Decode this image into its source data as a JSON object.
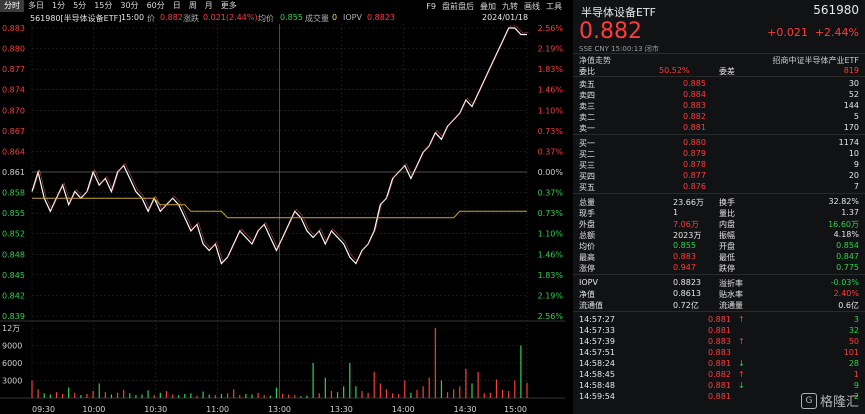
{
  "toolbar": {
    "tabs": [
      "分时",
      "多日",
      "1分",
      "5分",
      "15分",
      "30分",
      "60分",
      "日",
      "周",
      "月",
      "更多"
    ],
    "right_tabs": [
      "F9",
      "盘前盘后",
      "叠加",
      "九转",
      "画线",
      "工具"
    ]
  },
  "info": {
    "code_name": "561980[半导体设备ETF]",
    "time": "15:00",
    "price_label": "价",
    "price": "0.882",
    "change_label": "涨跌",
    "change": "0.021(2.44%)",
    "avg_label": "均价",
    "avg": "0.855",
    "volume_label": "成交量",
    "volume": "0",
    "iopv_label": "IOPV",
    "iopv": "0.8823",
    "date": "2024/01/18"
  },
  "chart_data": {
    "type": "line",
    "y_ticks_left": [
      "0.883",
      "0.880",
      "0.877",
      "0.874",
      "0.870",
      "0.867",
      "0.864",
      "0.861",
      "0.858",
      "0.855",
      "0.852",
      "0.848",
      "0.845",
      "0.842",
      "0.839"
    ],
    "y_ticks_right": [
      "2.56%",
      "2.19%",
      "1.83%",
      "1.46%",
      "1.10%",
      "0.73%",
      "0.37%",
      "0.00%",
      "0.37%",
      "0.73%",
      "1.10%",
      "1.46%",
      "1.83%",
      "2.19%",
      "2.56%"
    ],
    "volume_ticks": [
      "12万",
      "9000",
      "6000",
      "3000"
    ],
    "x_ticks": [
      "09:30",
      "10:00",
      "10:30",
      "11:00",
      "13:00",
      "13:30",
      "14:00",
      "14:30",
      "15:00"
    ],
    "ylim": [
      0.839,
      0.883
    ],
    "prev_close": 0.861,
    "series": [
      {
        "values": [
          0.858,
          0.861,
          0.857,
          0.855,
          0.857,
          0.859,
          0.856,
          0.858,
          0.857,
          0.858,
          0.861,
          0.859,
          0.86,
          0.858,
          0.861,
          0.862,
          0.86,
          0.858,
          0.857,
          0.855,
          0.857,
          0.855,
          0.856,
          0.857,
          0.856,
          0.854,
          0.852,
          0.853,
          0.85,
          0.849,
          0.85,
          0.847,
          0.848,
          0.85,
          0.852,
          0.851,
          0.85,
          0.852,
          0.853,
          0.851,
          0.849,
          0.851,
          0.853,
          0.855,
          0.854,
          0.852,
          0.851,
          0.852,
          0.85,
          0.852,
          0.851,
          0.85,
          0.848,
          0.847,
          0.849,
          0.85,
          0.852,
          0.856,
          0.857,
          0.86,
          0.861,
          0.862,
          0.86,
          0.862,
          0.864,
          0.865,
          0.867,
          0.866,
          0.868,
          0.869,
          0.87,
          0.872,
          0.871,
          0.873,
          0.875,
          0.877,
          0.879,
          0.881,
          0.883,
          0.883,
          0.882,
          0.882
        ]
      },
      {
        "values": [
          0.857,
          0.857,
          0.857,
          0.857,
          0.857,
          0.857,
          0.857,
          0.857,
          0.857,
          0.857,
          0.857,
          0.857,
          0.857,
          0.857,
          0.857,
          0.857,
          0.857,
          0.857,
          0.857,
          0.857,
          0.857,
          0.856,
          0.856,
          0.856,
          0.856,
          0.856,
          0.855,
          0.855,
          0.855,
          0.855,
          0.855,
          0.855,
          0.854,
          0.854,
          0.854,
          0.854,
          0.854,
          0.854,
          0.854,
          0.854,
          0.854,
          0.854,
          0.854,
          0.854,
          0.854,
          0.854,
          0.854,
          0.854,
          0.854,
          0.854,
          0.854,
          0.854,
          0.854,
          0.854,
          0.854,
          0.854,
          0.854,
          0.854,
          0.854,
          0.854,
          0.854,
          0.854,
          0.854,
          0.854,
          0.854,
          0.854,
          0.854,
          0.854,
          0.854,
          0.854,
          0.855,
          0.855,
          0.855,
          0.855,
          0.855,
          0.855,
          0.855,
          0.855,
          0.855,
          0.855,
          0.855,
          0.855
        ]
      }
    ],
    "volume_values": [
      3000,
      1500,
      800,
      600,
      1000,
      700,
      1800,
      900,
      500,
      700,
      1200,
      2500,
      1000,
      600,
      900,
      1400,
      800,
      500,
      600,
      1300,
      500,
      900,
      1200,
      600,
      500,
      700,
      800,
      400,
      1100,
      600,
      500,
      700,
      800,
      1500,
      500,
      700,
      600,
      900,
      500,
      400,
      1800,
      700,
      600,
      500,
      300,
      400,
      6000,
      800,
      3500,
      1200,
      1000,
      2000,
      6000,
      2000,
      1200,
      900,
      4500,
      2500,
      1500,
      800,
      700,
      3000,
      900,
      1400,
      2000,
      3500,
      12000,
      3000,
      1000,
      1500,
      2000,
      5000,
      2500,
      4500,
      800,
      900,
      3200,
      1400,
      1200,
      3000,
      9000,
      2600
    ]
  },
  "panel": {
    "title": "半导体设备ETF",
    "code": "561980",
    "price": "0.882",
    "change": "+0.021",
    "change_pct": "+2.44%",
    "meta": "SSE  CNY  15:00:13  闭市",
    "sub_left": "净值走势",
    "sub_right": "招商中证半导体产业ETF",
    "weibi_label": "委比",
    "weibi": "50.52%",
    "weicha_label": "委差",
    "weicha": "819",
    "asks": [
      {
        "label": "卖五",
        "price": "0.885",
        "vol": "30"
      },
      {
        "label": "卖四",
        "price": "0.884",
        "vol": "52"
      },
      {
        "label": "卖三",
        "price": "0.883",
        "vol": "144"
      },
      {
        "label": "卖二",
        "price": "0.882",
        "vol": "5"
      },
      {
        "label": "卖一",
        "price": "0.881",
        "vol": "170"
      }
    ],
    "bids": [
      {
        "label": "买一",
        "price": "0.880",
        "vol": "1174"
      },
      {
        "label": "买二",
        "price": "0.879",
        "vol": "10"
      },
      {
        "label": "买三",
        "price": "0.878",
        "vol": "9"
      },
      {
        "label": "买四",
        "price": "0.877",
        "vol": "20"
      },
      {
        "label": "买五",
        "price": "0.876",
        "vol": "7"
      }
    ],
    "stats": [
      {
        "l1": "总量",
        "v1": "23.66万",
        "c1": "white",
        "l2": "换手",
        "v2": "32.82%",
        "c2": "white"
      },
      {
        "l1": "现手",
        "v1": "1",
        "c1": "white",
        "l2": "量比",
        "v2": "1.37",
        "c2": "white"
      },
      {
        "l1": "外盘",
        "v1": "7.06万",
        "c1": "red",
        "l2": "内盘",
        "v2": "16.60万",
        "c2": "green"
      },
      {
        "l1": "总额",
        "v1": "2023万",
        "c1": "white",
        "l2": "振幅",
        "v2": "4.18%",
        "c2": "white"
      },
      {
        "l1": "均价",
        "v1": "0.855",
        "c1": "green",
        "l2": "开盘",
        "v2": "0.854",
        "c2": "green"
      },
      {
        "l1": "最高",
        "v1": "0.883",
        "c1": "red",
        "l2": "最低",
        "v2": "0.847",
        "c2": "green"
      },
      {
        "l1": "涨停",
        "v1": "0.947",
        "c1": "red",
        "l2": "跌停",
        "v2": "0.775",
        "c2": "green"
      }
    ],
    "iopv_rows": [
      {
        "l1": "IOPV",
        "v1": "0.8823",
        "c1": "white",
        "l2": "溢折率",
        "v2": "-0.03%",
        "c2": "green"
      },
      {
        "l1": "净值",
        "v1": "0.8613",
        "c1": "white",
        "l2": "贴水率",
        "v2": "2.40%",
        "c2": "red"
      },
      {
        "l1": "流通值",
        "v1": "0.72亿",
        "c1": "white",
        "l2": "流通量",
        "v2": "0.6亿",
        "c2": "white"
      }
    ],
    "trades": [
      {
        "time": "14:57:27",
        "price": "0.881",
        "dir": "up",
        "vol": "3",
        "vc": "green"
      },
      {
        "time": "14:57:33",
        "price": "0.881",
        "dir": "",
        "vol": "32",
        "vc": "green"
      },
      {
        "time": "14:57:39",
        "price": "0.883",
        "dir": "up",
        "vol": "50",
        "vc": "red"
      },
      {
        "time": "14:57:51",
        "price": "0.883",
        "dir": "",
        "vol": "101",
        "vc": "red"
      },
      {
        "time": "14:58:24",
        "price": "0.881",
        "dir": "down",
        "vol": "28",
        "vc": "green"
      },
      {
        "time": "14:58:45",
        "price": "0.882",
        "dir": "up",
        "vol": "1",
        "vc": "red"
      },
      {
        "time": "14:58:48",
        "price": "0.881",
        "dir": "down",
        "vol": "9",
        "vc": "green"
      },
      {
        "time": "14:59:54",
        "price": "0.881",
        "dir": "",
        "vol": "2",
        "vc": "green"
      }
    ],
    "watermark": "格隆汇"
  }
}
